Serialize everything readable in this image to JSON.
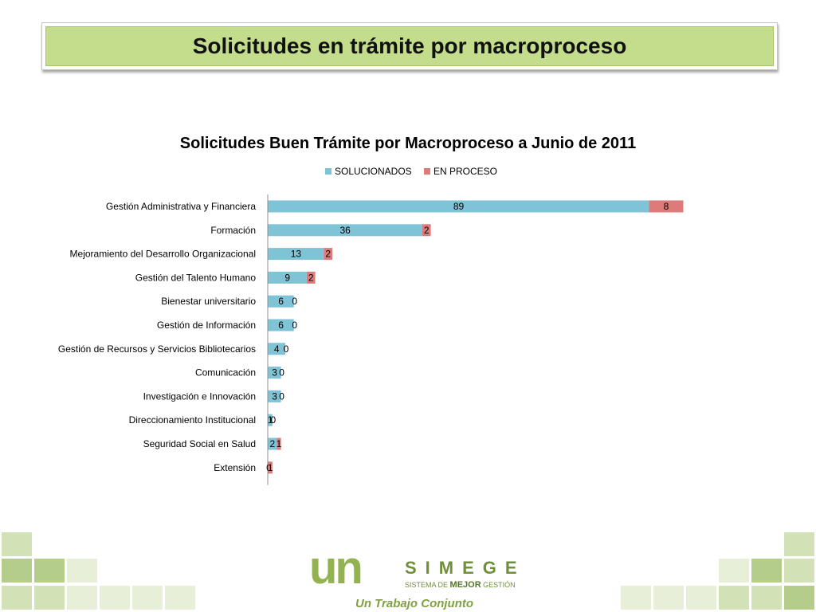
{
  "slide": {
    "title": "Solicitudes en trámite por macroproceso"
  },
  "colors": {
    "banner_fill": "#c3dd8c",
    "solucionados": "#7fc3d6",
    "en_proceso": "#dd7b7b",
    "tile_light": "#e8efd9",
    "tile_mid": "#d3e1b7",
    "tile_dark": "#b5cd8a",
    "logo_green": "#93b352"
  },
  "chart_data": {
    "type": "bar",
    "orientation": "horizontal",
    "stacked": true,
    "title": "Solicitudes Buen Trámite por Macroproceso a Junio de 2011",
    "legend_position": "top",
    "grid": false,
    "categories": [
      "Gestión Administrativa y Financiera",
      "Formación",
      "Mejoramiento del Desarrollo Organizacional",
      "Gestión del Talento Humano",
      "Bienestar universitario",
      "Gestión de Información",
      "Gestión de Recursos y Servicios Bibliotecarios",
      "Comunicación",
      "Investigación e Innovación",
      "Direccionamiento Institucional",
      "Seguridad Social en Salud",
      "Extensión"
    ],
    "series": [
      {
        "name": "SOLUCIONADOS",
        "values": [
          89,
          36,
          13,
          9,
          6,
          6,
          4,
          3,
          3,
          1,
          2,
          0
        ]
      },
      {
        "name": "EN PROCESO",
        "values": [
          8,
          2,
          2,
          2,
          0,
          0,
          0,
          0,
          0,
          0,
          1,
          1
        ]
      }
    ]
  },
  "logo": {
    "mark": "un",
    "name": "SIMEGE",
    "subtitle_pre": "SISTEMA DE",
    "subtitle_bold": "MEJOR",
    "subtitle_post": "GESTIÓN",
    "tagline": "Un Trabajo Conjunto"
  }
}
